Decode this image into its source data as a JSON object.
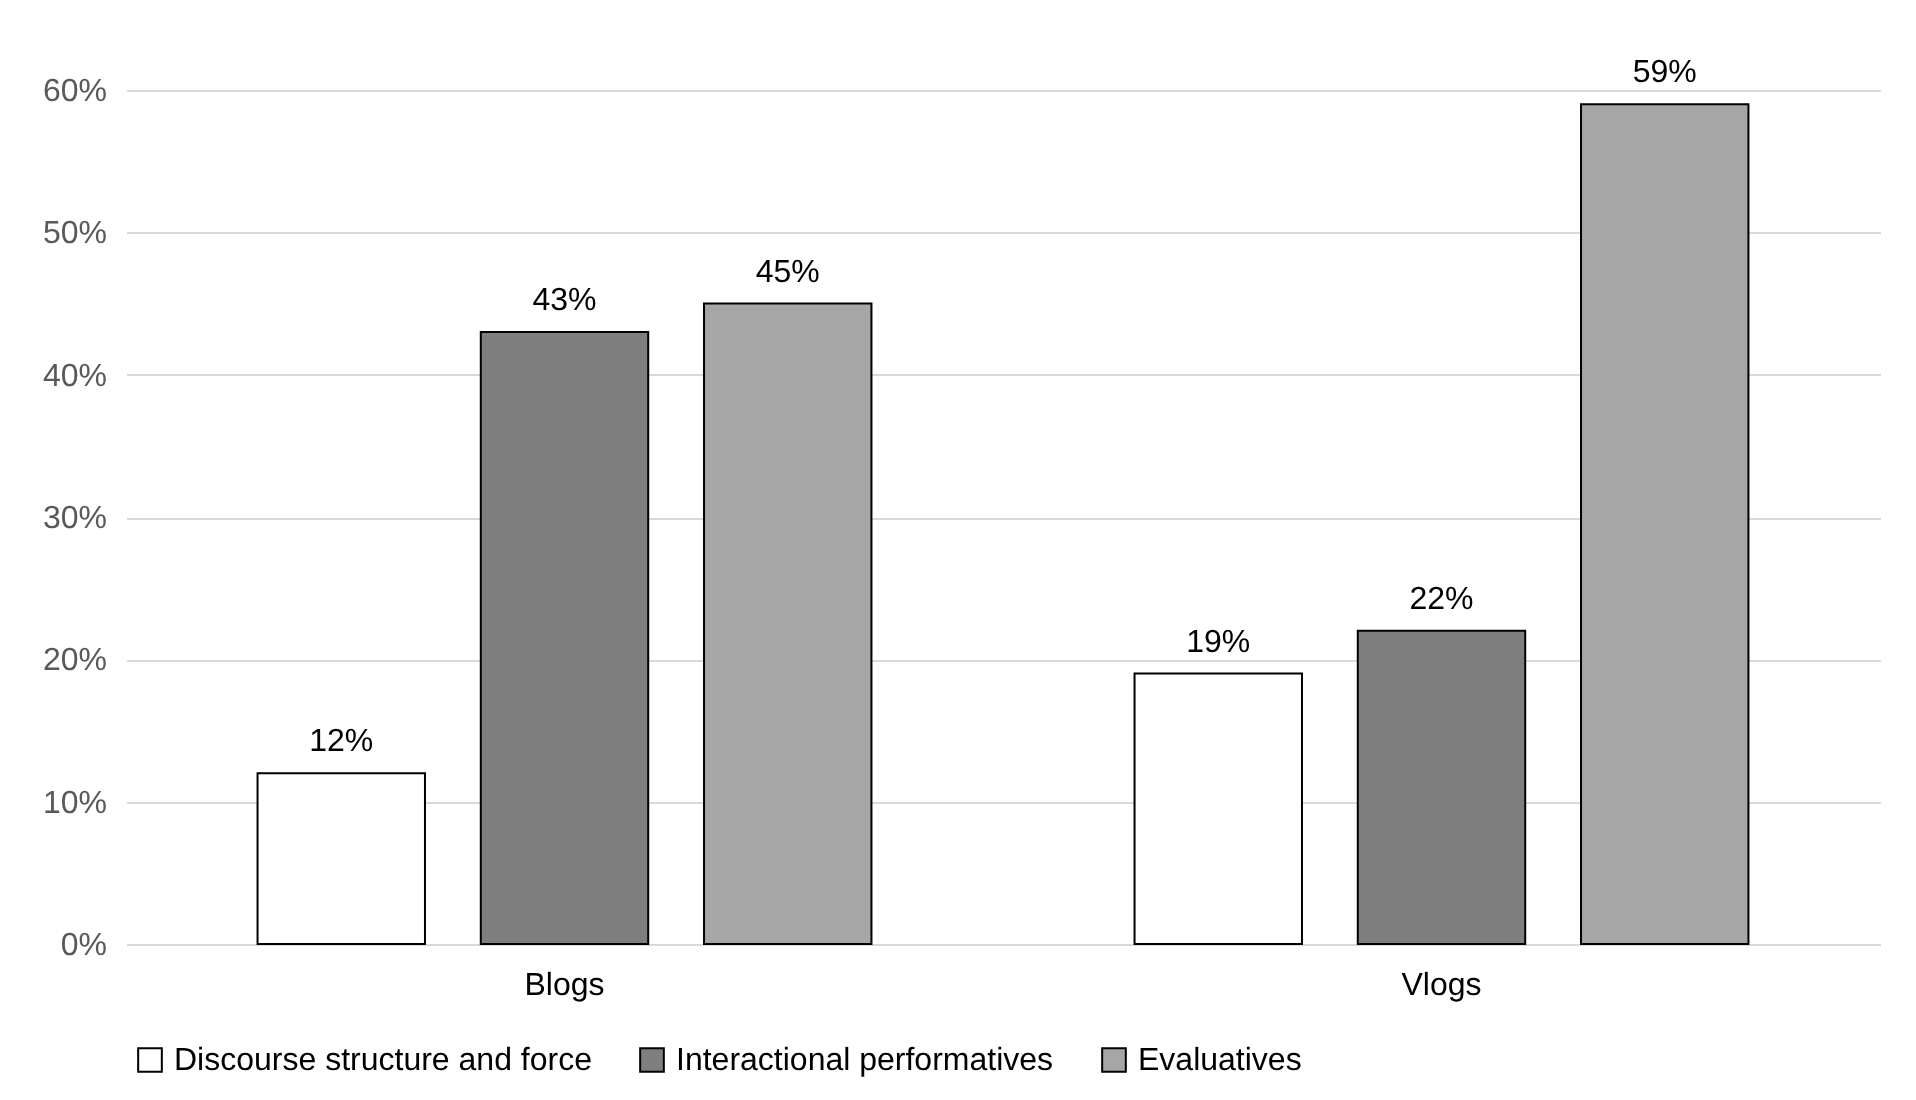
{
  "chart_data": {
    "type": "bar",
    "categories": [
      "Blogs",
      "Vlogs"
    ],
    "series": [
      {
        "name": "Discourse structure and force",
        "color": "#ffffff",
        "values": [
          12,
          19
        ],
        "value_labels": [
          "12%",
          "19%"
        ]
      },
      {
        "name": "Interactional performatives",
        "color": "#7f7f7f",
        "values": [
          43,
          22
        ],
        "value_labels": [
          "43%",
          "22%"
        ]
      },
      {
        "name": "Evaluatives",
        "color": "#a6a6a6",
        "values": [
          45,
          59
        ],
        "value_labels": [
          "45%",
          "59%"
        ]
      }
    ],
    "ylim": [
      0,
      60
    ],
    "yticks": [
      {
        "value": 0,
        "label": "0%"
      },
      {
        "value": 10,
        "label": "10%"
      },
      {
        "value": 20,
        "label": "20%"
      },
      {
        "value": 30,
        "label": "30%"
      },
      {
        "value": 40,
        "label": "40%"
      },
      {
        "value": 50,
        "label": "50%"
      },
      {
        "value": 60,
        "label": "60%"
      }
    ],
    "grid": "y",
    "legend": "bottom"
  }
}
